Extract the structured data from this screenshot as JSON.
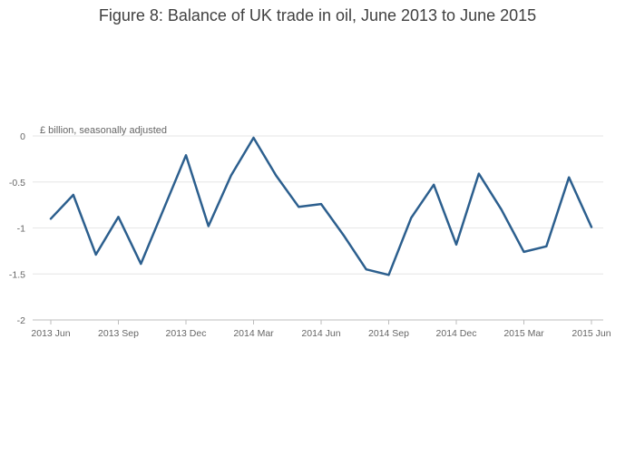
{
  "chart_data": {
    "type": "line",
    "title": "Figure 8: Balance of UK trade in oil, June 2013 to June 2015",
    "ylabel": "£ billion, seasonally adjusted",
    "xlabel": "",
    "ylim": [
      -2,
      0
    ],
    "yticks": [
      "0",
      "-0.5",
      "-1",
      "-1.5",
      "-2"
    ],
    "ytick_values": [
      0,
      -0.5,
      -1,
      -1.5,
      -2
    ],
    "xticks": [
      "2013 Jun",
      "2013 Sep",
      "2013 Dec",
      "2014 Mar",
      "2014 Jun",
      "2014 Sep",
      "2014 Dec",
      "2015 Mar",
      "2015 Jun"
    ],
    "xtick_indices": [
      0,
      3,
      6,
      9,
      12,
      15,
      18,
      21,
      24
    ],
    "grid": true,
    "line_color": "#2c5f8e",
    "grid_color": "#e6e6e6",
    "x": [
      "2013 Jun",
      "2013 Jul",
      "2013 Aug",
      "2013 Sep",
      "2013 Oct",
      "2013 Nov",
      "2013 Dec",
      "2014 Jan",
      "2014 Feb",
      "2014 Mar",
      "2014 Apr",
      "2014 May",
      "2014 Jun",
      "2014 Jul",
      "2014 Aug",
      "2014 Sep",
      "2014 Oct",
      "2014 Nov",
      "2014 Dec",
      "2015 Jan",
      "2015 Feb",
      "2015 Mar",
      "2015 Apr",
      "2015 May",
      "2015 Jun"
    ],
    "values": [
      -0.9,
      -0.64,
      -1.29,
      -0.88,
      -1.39,
      -0.8,
      -0.21,
      -0.98,
      -0.43,
      -0.02,
      -0.43,
      -0.77,
      -0.74,
      -1.08,
      -1.45,
      -1.51,
      -0.89,
      -0.53,
      -1.18,
      -0.41,
      -0.8,
      -1.26,
      -1.2,
      -0.45,
      -0.99
    ]
  }
}
